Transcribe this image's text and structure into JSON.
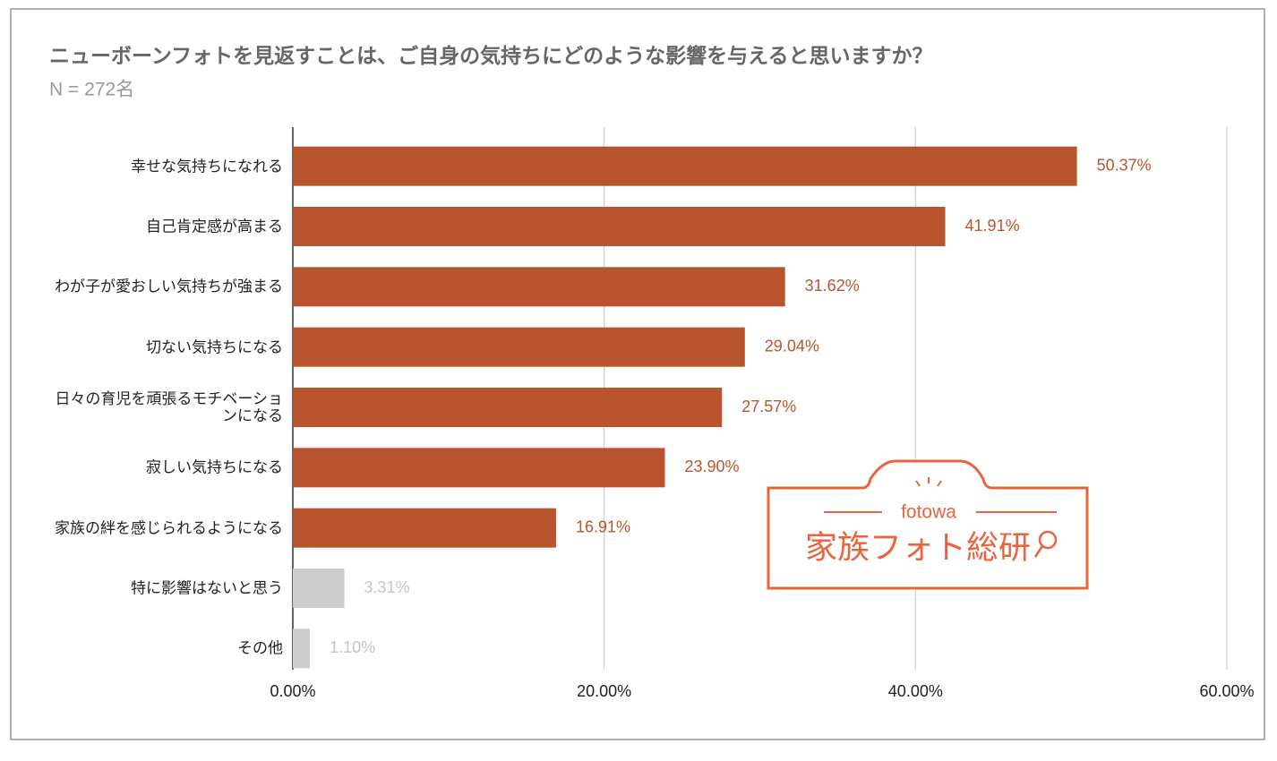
{
  "chart_data": {
    "type": "hbar",
    "title": "ニューボーンフォトを見返すことは、ご自身の気持ちにどのような影響を与えると思いますか？",
    "subtitle": "N = 272名",
    "categories": [
      "幸せな気持ちになれる",
      "自己肯定感が高まる",
      "わが子が愛おしい気持ちが強まる",
      "切ない気持ちになる",
      "日々の育児を頑張るモチベーションになる",
      "寂しい気持ちになる",
      "家族の絆を感じられるようになる",
      "特に影響はないと思う",
      "その他"
    ],
    "values": [
      50.37,
      41.91,
      31.62,
      29.04,
      27.57,
      23.9,
      16.91,
      3.31,
      1.1
    ],
    "value_labels": [
      "50.37%",
      "41.91%",
      "31.62%",
      "29.04%",
      "27.57%",
      "23.90%",
      "16.91%",
      "3.31%",
      "1.10%"
    ],
    "colors": [
      "#b9552e",
      "#b9552e",
      "#b9552e",
      "#b9552e",
      "#b9552e",
      "#b9552e",
      "#b9552e",
      "#cccccc",
      "#cccccc"
    ],
    "xlim": [
      0,
      60
    ],
    "xticks": [
      {
        "value": 0,
        "label": "0.00%"
      },
      {
        "value": 20,
        "label": "20.00%"
      },
      {
        "value": 40,
        "label": "40.00%"
      },
      {
        "value": 60,
        "label": "60.00%"
      }
    ],
    "grid": true
  },
  "logo": {
    "brand": "fotowa",
    "name": "家族フォト総研"
  }
}
